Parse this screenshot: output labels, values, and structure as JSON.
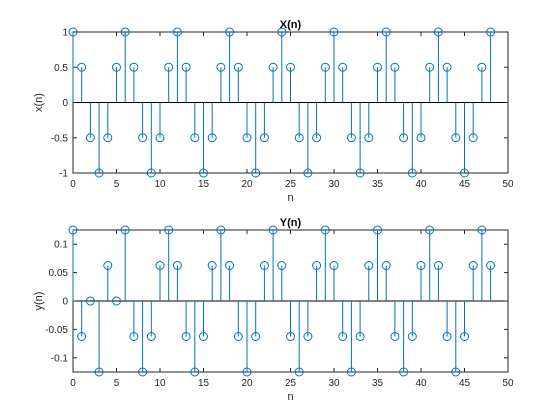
{
  "chart_data": [
    {
      "type": "stem",
      "title": "X(n)",
      "xlabel": "n",
      "ylabel": "x(n)",
      "xlim": [
        0,
        50
      ],
      "ylim": [
        -1,
        1
      ],
      "xticks": [
        0,
        5,
        10,
        15,
        20,
        25,
        30,
        35,
        40,
        45,
        50
      ],
      "yticks": [
        -1,
        -0.5,
        0,
        0.5,
        1
      ],
      "ytick_labels": [
        "-1",
        "-0.5",
        "0",
        "0.5",
        "1"
      ],
      "color": "#0072BD",
      "grid": false,
      "x": [
        0,
        1,
        2,
        3,
        4,
        5,
        6,
        7,
        8,
        9,
        10,
        11,
        12,
        13,
        14,
        15,
        16,
        17,
        18,
        19,
        20,
        21,
        22,
        23,
        24,
        25,
        26,
        27,
        28,
        29,
        30,
        31,
        32,
        33,
        34,
        35,
        36,
        37,
        38,
        39,
        40,
        41,
        42,
        43,
        44,
        45,
        46,
        47,
        48
      ],
      "values": [
        1,
        0.5,
        -0.5,
        -1,
        -0.5,
        0.5,
        1,
        0.5,
        -0.5,
        -1,
        -0.5,
        0.5,
        1,
        0.5,
        -0.5,
        -1,
        -0.5,
        0.5,
        1,
        0.5,
        -0.5,
        -1,
        -0.5,
        0.5,
        1,
        0.5,
        -0.5,
        -1,
        -0.5,
        0.5,
        1,
        0.5,
        -0.5,
        -1,
        -0.5,
        0.5,
        1,
        0.5,
        -0.5,
        -1,
        -0.5,
        0.5,
        1,
        0.5,
        -0.5,
        -1,
        -0.5,
        0.5,
        1
      ]
    },
    {
      "type": "stem",
      "title": "Y(n)",
      "xlabel": "n",
      "ylabel": "y(n)",
      "xlim": [
        0,
        50
      ],
      "ylim": [
        -0.125,
        0.125
      ],
      "xticks": [
        0,
        5,
        10,
        15,
        20,
        25,
        30,
        35,
        40,
        45,
        50
      ],
      "yticks": [
        -0.1,
        -0.05,
        0,
        0.05,
        0.1
      ],
      "ytick_labels": [
        "-0.1",
        "-0.05",
        "0",
        "0.05",
        "0.1"
      ],
      "color": "#0072BD",
      "grid": false,
      "x": [
        0,
        1,
        2,
        3,
        4,
        5,
        6,
        7,
        8,
        9,
        10,
        11,
        12,
        13,
        14,
        15,
        16,
        17,
        18,
        19,
        20,
        21,
        22,
        23,
        24,
        25,
        26,
        27,
        28,
        29,
        30,
        31,
        32,
        33,
        34,
        35,
        36,
        37,
        38,
        39,
        40,
        41,
        42,
        43,
        44,
        45,
        46,
        47,
        48
      ],
      "values": [
        0.125,
        -0.0625,
        0,
        -0.125,
        0.0625,
        0,
        0.125,
        -0.0625,
        -0.125,
        -0.0625,
        0.0625,
        0.125,
        0.0625,
        -0.0625,
        -0.125,
        -0.0625,
        0.0625,
        0.125,
        0.0625,
        -0.0625,
        -0.125,
        -0.0625,
        0.0625,
        0.125,
        0.0625,
        -0.0625,
        -0.125,
        -0.0625,
        0.0625,
        0.125,
        0.0625,
        -0.0625,
        -0.125,
        -0.0625,
        0.0625,
        0.125,
        0.0625,
        -0.0625,
        -0.125,
        -0.0625,
        0.0625,
        0.125,
        0.0625,
        -0.0625,
        -0.125,
        -0.0625,
        0.0625,
        0.125,
        0.0625
      ]
    }
  ]
}
